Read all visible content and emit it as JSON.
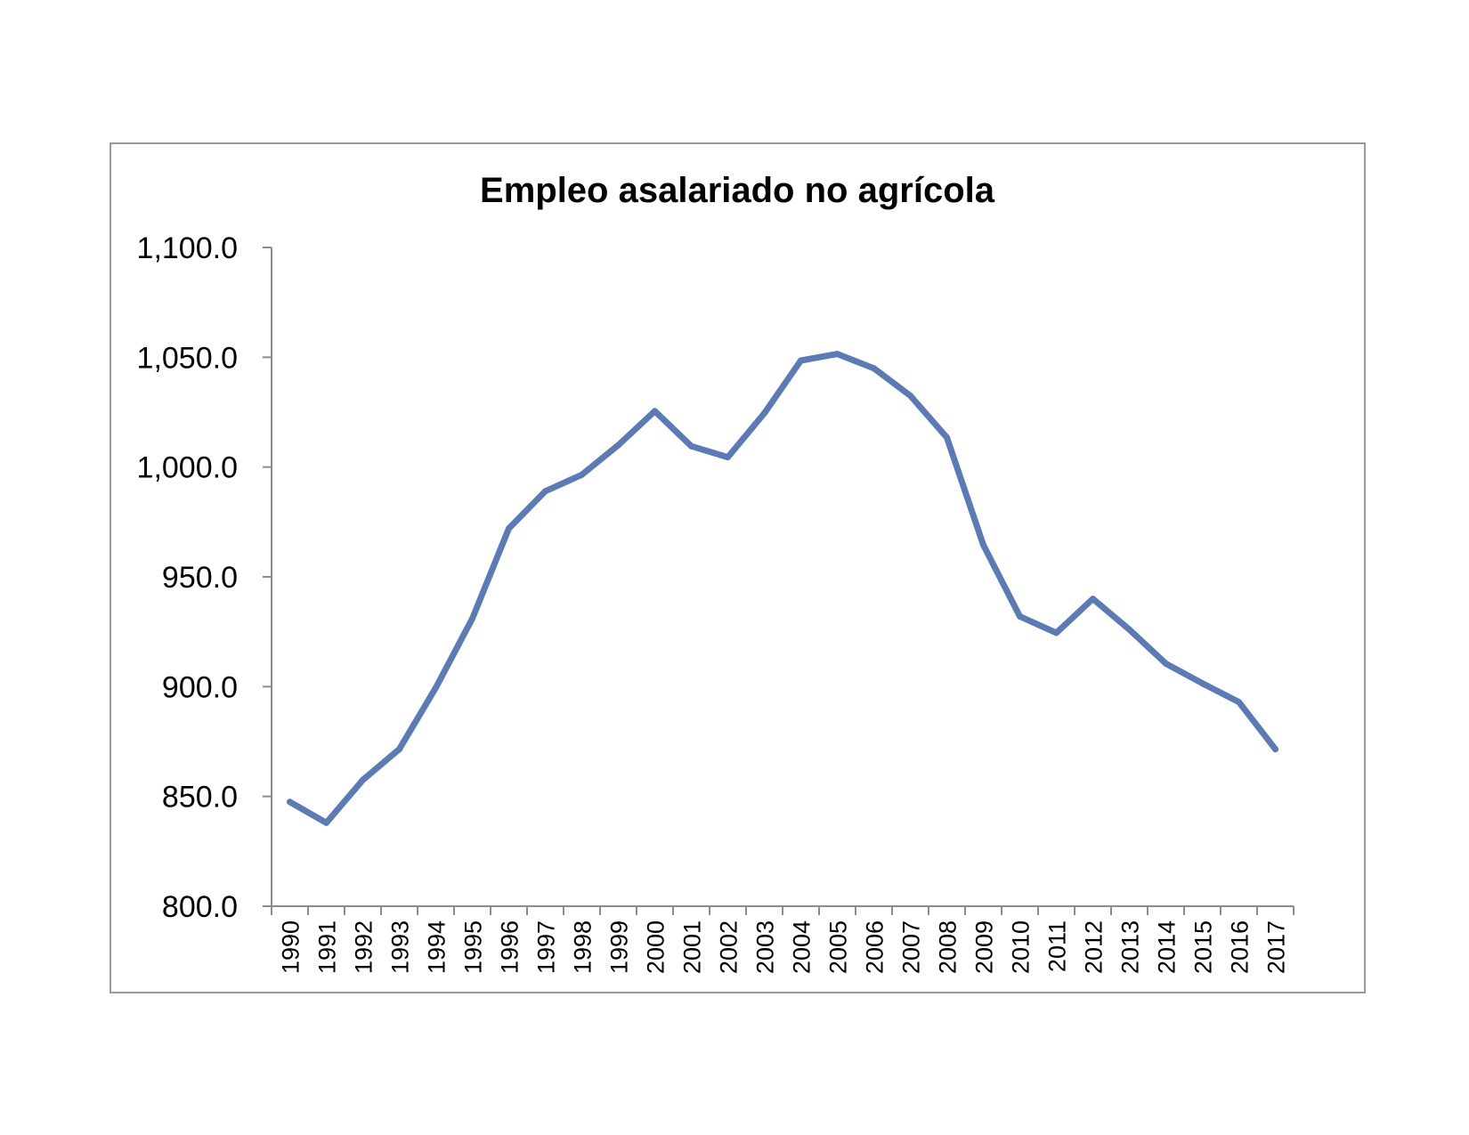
{
  "chart_data": {
    "type": "line",
    "title": "Empleo asalariado no agrícola",
    "xlabel": "",
    "ylabel": "",
    "ylim": [
      800,
      1100
    ],
    "y_ticks": [
      "800.0",
      "850.0",
      "900.0",
      "950.0",
      "1,000.0",
      "1,050.0",
      "1,100.0"
    ],
    "y_tick_values": [
      800,
      850,
      900,
      950,
      1000,
      1050,
      1100
    ],
    "categories": [
      "1990",
      "1991",
      "1992",
      "1993",
      "1994",
      "1995",
      "1996",
      "1997",
      "1998",
      "1999",
      "2000",
      "2001",
      "2002",
      "2003",
      "2004",
      "2005",
      "2006",
      "2007",
      "2008",
      "2009",
      "2010",
      "2011",
      "2012",
      "2013",
      "2014",
      "2015",
      "2016",
      "2017"
    ],
    "series": [
      {
        "values": [
          847.5,
          838.0,
          857.5,
          871.5,
          899.5,
          931.0,
          972.0,
          989.0,
          996.5,
          1010.0,
          1025.5,
          1009.5,
          1004.5,
          1024.5,
          1048.5,
          1051.5,
          1045.0,
          1032.5,
          1013.5,
          964.5,
          932.0,
          924.5,
          940.0,
          926.0,
          910.5,
          901.5,
          893.0,
          871.5
        ]
      }
    ],
    "grid": false,
    "legend": "none",
    "line_color": "#5b7bb7"
  }
}
